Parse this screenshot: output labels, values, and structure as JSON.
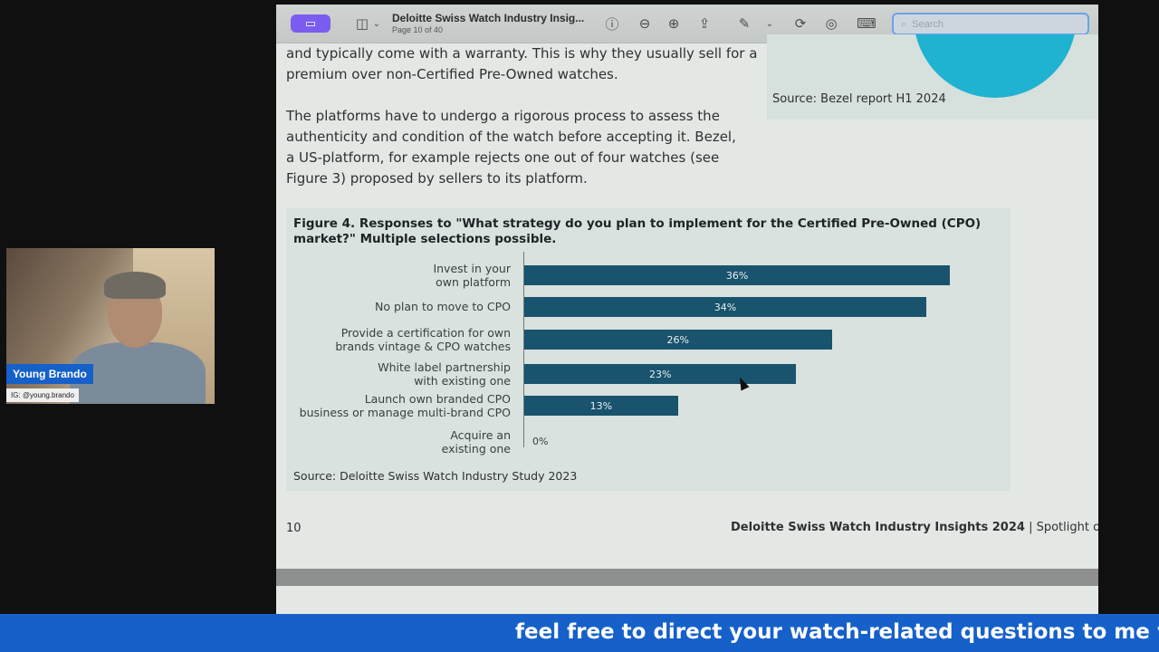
{
  "viewer": {
    "doc_title": "Deloitte Swiss Watch Industry Insig...",
    "page_indicator": "Page 10 of 40",
    "search_placeholder": "Search"
  },
  "page": {
    "paragraph1": [
      "and typically come with a warranty. This is why they usually sell for a",
      "premium over non-Certified Pre-Owned watches."
    ],
    "paragraph2": [
      "The platforms have to undergo a rigorous process to assess the",
      "authenticity and condition of the watch before accepting it. Bezel,",
      "a US-platform, for example rejects one out of four watches (see",
      "Figure 3)  proposed by sellers to its platform."
    ],
    "top_source": "Source: Bezel report H1 2024",
    "footer_number": "10",
    "footer_title_bold": "Deloitte Swiss Watch Industry Insights 2024",
    "footer_title_rest": " | Spotlight on the"
  },
  "chart_data": {
    "type": "bar",
    "orientation": "horizontal",
    "title": "Figure 4. Responses to \"What strategy do you plan to implement for the Certified Pre-Owned (CPO) market?\" Multiple selections possible.",
    "categories": [
      [
        "Invest in your",
        "own platform"
      ],
      [
        "No plan to move to CPO"
      ],
      [
        "Provide a certification for own",
        "brands vintage & CPO watches"
      ],
      [
        "White label partnership",
        "with existing one"
      ],
      [
        "Launch own branded CPO ",
        "business or manage multi-brand CPO"
      ],
      [
        "Acquire an",
        "existing one"
      ]
    ],
    "values": [
      36,
      34,
      26,
      23,
      13,
      0
    ],
    "value_labels": [
      "36%",
      "34%",
      "26%",
      "23%",
      "13%",
      "0%"
    ],
    "unit": "%",
    "bar_color": "#1a536d",
    "source": "Source: Deloitte Swiss Watch Industry Study 2023"
  },
  "webcam": {
    "name": "Young Brando",
    "handle": "IG: @young.brando"
  },
  "ticker": {
    "text": "feel free to direct your watch-related questions to me v"
  }
}
